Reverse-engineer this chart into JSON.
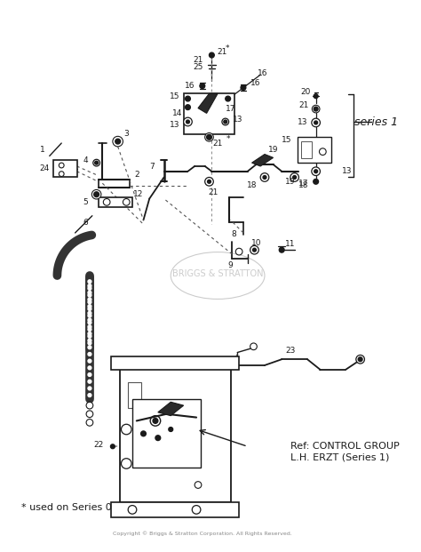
{
  "bg_color": "#ffffff",
  "fig_width": 4.74,
  "fig_height": 6.21,
  "dpi": 100,
  "line_color": "#1a1a1a",
  "series1_label": "series 1",
  "footnote": "* used on Series 0",
  "ref_text": "Ref: CONTROL GROUP\nL.H. ERZT (Series 1)",
  "copyright": "Copyright © Briggs & Stratton Corporation. All Rights Reserved.",
  "watermark": "BRIGGS & STRATTON"
}
